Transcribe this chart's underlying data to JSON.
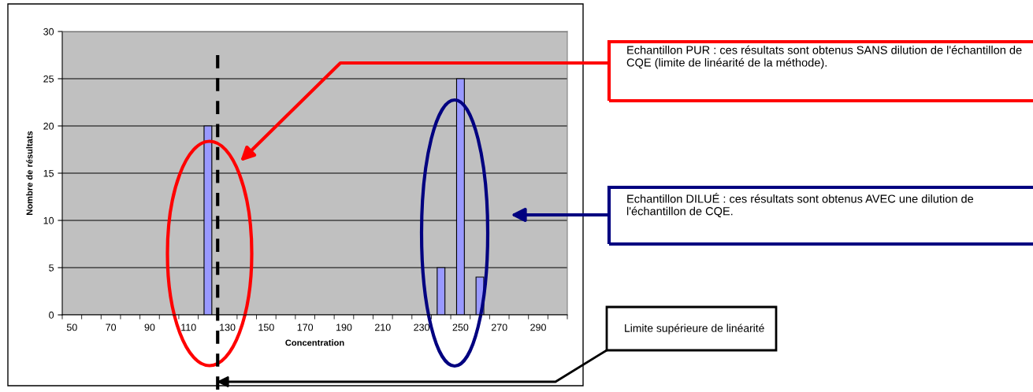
{
  "chart_data": {
    "type": "bar",
    "xlabel": "Concentration",
    "ylabel": "Nombre de résultats",
    "x": [
      120,
      240,
      250,
      260
    ],
    "series": [
      {
        "color": "#9999ff",
        "values": [
          20,
          5,
          25,
          4
        ]
      }
    ],
    "xlim": [
      45,
      305
    ],
    "xticks": [
      {
        "value": 45,
        "label": null
      },
      {
        "value": 50,
        "label": "50"
      },
      {
        "value": 55,
        "label": null
      },
      {
        "value": 65,
        "label": null
      },
      {
        "value": 70,
        "label": "70"
      },
      {
        "value": 75,
        "label": null
      },
      {
        "value": 85,
        "label": null
      },
      {
        "value": 90,
        "label": "90"
      },
      {
        "value": 95,
        "label": null
      },
      {
        "value": 105,
        "label": null
      },
      {
        "value": 110,
        "label": "110"
      },
      {
        "value": 115,
        "label": null
      },
      {
        "value": 125,
        "label": null
      },
      {
        "value": 130,
        "label": "130"
      },
      {
        "value": 135,
        "label": null
      },
      {
        "value": 145,
        "label": null
      },
      {
        "value": 150,
        "label": "150"
      },
      {
        "value": 155,
        "label": null
      },
      {
        "value": 165,
        "label": null
      },
      {
        "value": 170,
        "label": "170"
      },
      {
        "value": 175,
        "label": null
      },
      {
        "value": 185,
        "label": null
      },
      {
        "value": 190,
        "label": "190"
      },
      {
        "value": 195,
        "label": null
      },
      {
        "value": 205,
        "label": null
      },
      {
        "value": 210,
        "label": "210"
      },
      {
        "value": 215,
        "label": null
      },
      {
        "value": 225,
        "label": null
      },
      {
        "value": 230,
        "label": "230"
      },
      {
        "value": 235,
        "label": null
      },
      {
        "value": 245,
        "label": null
      },
      {
        "value": 250,
        "label": "250"
      },
      {
        "value": 255,
        "label": null
      },
      {
        "value": 265,
        "label": null
      },
      {
        "value": 270,
        "label": "270"
      },
      {
        "value": 275,
        "label": null
      },
      {
        "value": 285,
        "label": null
      },
      {
        "value": 290,
        "label": "290"
      },
      {
        "value": 295,
        "label": null
      },
      {
        "value": 305,
        "label": null
      }
    ],
    "ylim": [
      0,
      30
    ],
    "yticks": [
      0,
      5,
      10,
      15,
      20,
      25,
      30
    ],
    "grid": "y",
    "ref_lines": [
      {
        "axis": "x",
        "value": 125,
        "label": "Limite supérieure de linéarité",
        "color": "#000000",
        "line_style": "dashed"
      }
    ],
    "annotations": [
      "Echantillon PUR : ces résultats sont obtenus SANS dilution de l'échantillon de CQE (limite de linéarité de la méthode).",
      "Echantillon DILUÉ : ces résultats sont obtenus AVEC une dilution de l'échantillon de CQE."
    ]
  }
}
